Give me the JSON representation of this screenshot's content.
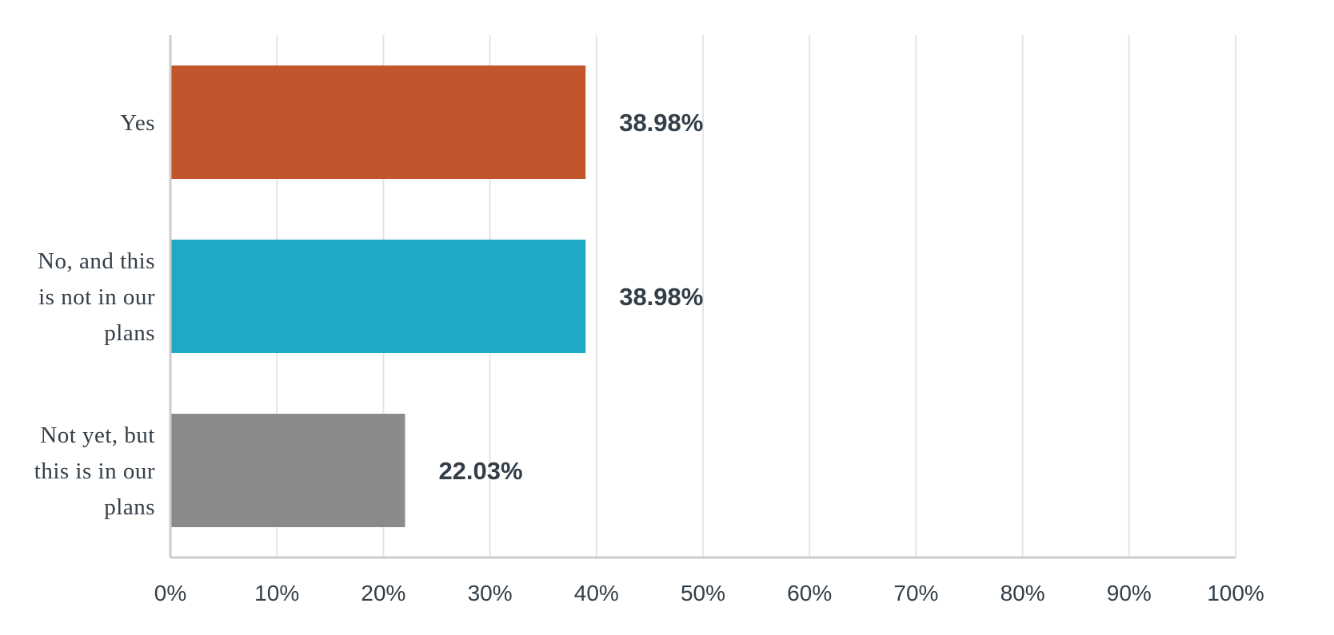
{
  "chart_data": {
    "type": "bar",
    "orientation": "horizontal",
    "categories": [
      [
        "Yes"
      ],
      [
        "No, and this",
        "is not in our",
        "plans"
      ],
      [
        "Not yet, but",
        "this is in our",
        "plans"
      ]
    ],
    "values": [
      38.98,
      38.98,
      22.03
    ],
    "value_labels": [
      "38.98%",
      "38.98%",
      "22.03%"
    ],
    "colors": [
      "#c1552b",
      "#1eaac6",
      "#898a8c"
    ],
    "xlim": [
      0,
      100
    ],
    "x_ticks": [
      0,
      10,
      20,
      30,
      40,
      50,
      60,
      70,
      80,
      90,
      100
    ],
    "x_tick_labels": [
      "0%",
      "10%",
      "20%",
      "30%",
      "40%",
      "50%",
      "60%",
      "70%",
      "80%",
      "90%",
      "100%"
    ],
    "grid": true,
    "title": "",
    "xlabel": "",
    "ylabel": ""
  }
}
